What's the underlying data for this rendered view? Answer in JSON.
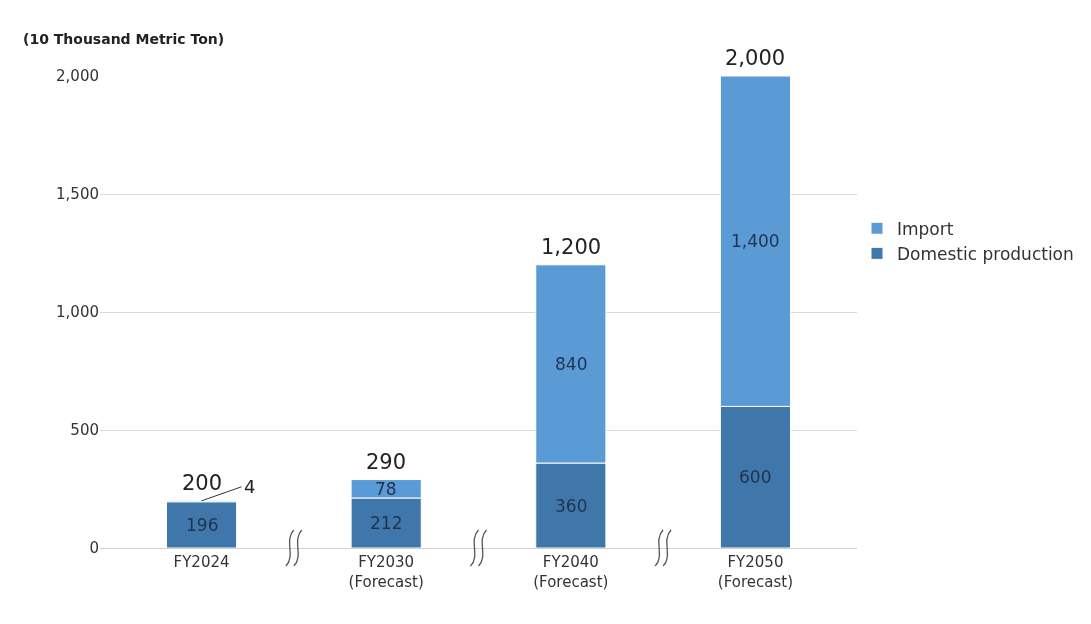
{
  "chart_data": {
    "type": "bar",
    "stacked": true,
    "ylabel": "(10 Thousand Metric Ton)",
    "categories": [
      "FY2024",
      "FY2030\n(Forecast)",
      "FY2040\n(Forecast)",
      "FY2050\n(Forecast)"
    ],
    "series": [
      {
        "name": "Domestic production",
        "color": "#3f77ab",
        "values": [
          196,
          212,
          360,
          600
        ],
        "value_labels": [
          "196",
          "212",
          "360",
          "600"
        ]
      },
      {
        "name": "Import",
        "color": "#5b9bd5",
        "values": [
          4,
          78,
          840,
          1400
        ],
        "value_labels": [
          "4",
          "78",
          "840",
          "1,400"
        ]
      }
    ],
    "totals": [
      "200",
      "290",
      "1,200",
      "2,000"
    ],
    "ylim": [
      0,
      2000
    ],
    "yticks": [
      0,
      {
        "value": 500,
        "label": "500"
      },
      {
        "value": 1000,
        "label": "1,000"
      },
      {
        "value": 1500,
        "label": "1,500"
      },
      {
        "value": 2000,
        "label": "2,000"
      }
    ],
    "grid": "y",
    "legend": "right"
  }
}
